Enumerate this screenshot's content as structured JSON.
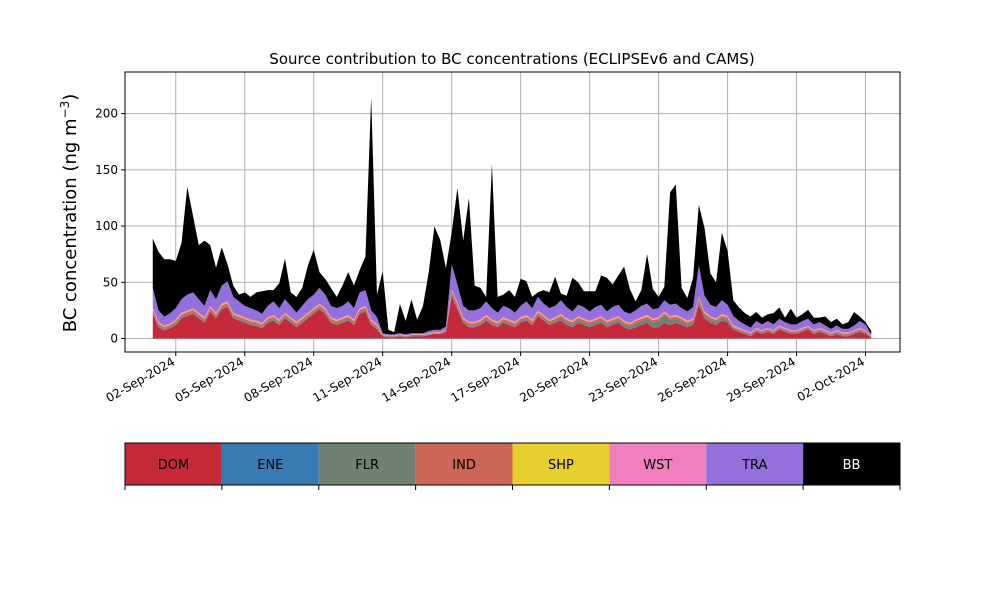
{
  "chart_data": {
    "type": "area",
    "stacked": true,
    "title": "Source contribution to BC concentrations (ECLIPSEv6 and CAMS)",
    "ylabel_main": "BC concentration (ng m",
    "ylabel_sup": "−3",
    "ylabel_close": ")",
    "xlabel": "",
    "ylim": [
      -12,
      237
    ],
    "yticks": [
      0,
      50,
      100,
      150,
      200
    ],
    "xlim": [
      "2024-08-30T19:00",
      "2024-10-03T12:00"
    ],
    "xticks": [
      {
        "date": "2024-09-02",
        "label": "02-Sep-2024"
      },
      {
        "date": "2024-09-05",
        "label": "05-Sep-2024"
      },
      {
        "date": "2024-09-08",
        "label": "08-Sep-2024"
      },
      {
        "date": "2024-09-11",
        "label": "11-Sep-2024"
      },
      {
        "date": "2024-09-14",
        "label": "14-Sep-2024"
      },
      {
        "date": "2024-09-17",
        "label": "17-Sep-2024"
      },
      {
        "date": "2024-09-20",
        "label": "20-Sep-2024"
      },
      {
        "date": "2024-09-23",
        "label": "23-Sep-2024"
      },
      {
        "date": "2024-09-26",
        "label": "26-Sep-2024"
      },
      {
        "date": "2024-09-29",
        "label": "29-Sep-2024"
      },
      {
        "date": "2024-10-02",
        "label": "02-Oct-2024"
      }
    ],
    "grid": true,
    "x": [
      "2024-09-01T00:00",
      "2024-09-01T06:00",
      "2024-09-01T12:00",
      "2024-09-01T18:00",
      "2024-09-02T00:00",
      "2024-09-02T06:00",
      "2024-09-02T12:00",
      "2024-09-02T18:00",
      "2024-09-03T00:00",
      "2024-09-03T06:00",
      "2024-09-03T12:00",
      "2024-09-03T18:00",
      "2024-09-04T00:00",
      "2024-09-04T06:00",
      "2024-09-04T12:00",
      "2024-09-04T18:00",
      "2024-09-05T00:00",
      "2024-09-05T06:00",
      "2024-09-05T12:00",
      "2024-09-05T18:00",
      "2024-09-06T00:00",
      "2024-09-06T06:00",
      "2024-09-06T12:00",
      "2024-09-06T18:00",
      "2024-09-07T00:00",
      "2024-09-07T06:00",
      "2024-09-07T12:00",
      "2024-09-07T18:00",
      "2024-09-08T00:00",
      "2024-09-08T06:00",
      "2024-09-08T12:00",
      "2024-09-08T18:00",
      "2024-09-09T00:00",
      "2024-09-09T06:00",
      "2024-09-09T12:00",
      "2024-09-09T18:00",
      "2024-09-10T00:00",
      "2024-09-10T06:00",
      "2024-09-10T12:00",
      "2024-09-10T18:00",
      "2024-09-11T00:00",
      "2024-09-11T06:00",
      "2024-09-11T12:00",
      "2024-09-11T18:00",
      "2024-09-12T00:00",
      "2024-09-12T06:00",
      "2024-09-12T12:00",
      "2024-09-12T18:00",
      "2024-09-13T00:00",
      "2024-09-13T06:00",
      "2024-09-13T12:00",
      "2024-09-13T18:00",
      "2024-09-14T00:00",
      "2024-09-14T06:00",
      "2024-09-14T12:00",
      "2024-09-14T18:00",
      "2024-09-15T00:00",
      "2024-09-15T06:00",
      "2024-09-15T12:00",
      "2024-09-15T18:00",
      "2024-09-16T00:00",
      "2024-09-16T06:00",
      "2024-09-16T12:00",
      "2024-09-16T18:00",
      "2024-09-17T00:00",
      "2024-09-17T06:00",
      "2024-09-17T12:00",
      "2024-09-17T18:00",
      "2024-09-18T00:00",
      "2024-09-18T06:00",
      "2024-09-18T12:00",
      "2024-09-18T18:00",
      "2024-09-19T00:00",
      "2024-09-19T06:00",
      "2024-09-19T12:00",
      "2024-09-19T18:00",
      "2024-09-20T00:00",
      "2024-09-20T06:00",
      "2024-09-20T12:00",
      "2024-09-20T18:00",
      "2024-09-21T00:00",
      "2024-09-21T06:00",
      "2024-09-21T12:00",
      "2024-09-21T18:00",
      "2024-09-22T00:00",
      "2024-09-22T06:00",
      "2024-09-22T12:00",
      "2024-09-22T18:00",
      "2024-09-23T00:00",
      "2024-09-23T06:00",
      "2024-09-23T12:00",
      "2024-09-23T18:00",
      "2024-09-24T00:00",
      "2024-09-24T06:00",
      "2024-09-24T12:00",
      "2024-09-24T18:00",
      "2024-09-25T00:00",
      "2024-09-25T06:00",
      "2024-09-25T12:00",
      "2024-09-25T18:00",
      "2024-09-26T00:00",
      "2024-09-26T06:00",
      "2024-09-26T12:00",
      "2024-09-26T18:00",
      "2024-09-27T00:00",
      "2024-09-27T06:00",
      "2024-09-27T12:00",
      "2024-09-27T18:00",
      "2024-09-28T00:00",
      "2024-09-28T06:00",
      "2024-09-28T12:00",
      "2024-09-28T18:00",
      "2024-09-29T00:00",
      "2024-09-29T06:00",
      "2024-09-29T12:00",
      "2024-09-29T18:00",
      "2024-09-30T00:00",
      "2024-09-30T06:00",
      "2024-09-30T12:00",
      "2024-09-30T18:00",
      "2024-10-01T00:00",
      "2024-10-01T06:00",
      "2024-10-01T12:00",
      "2024-10-01T18:00",
      "2024-10-02T00:00",
      "2024-10-02T06:00"
    ],
    "series": [
      {
        "name": "DOM",
        "color": "#c62a3a",
        "values": [
          22,
          10,
          7,
          9,
          12,
          18,
          20,
          22,
          18,
          14,
          24,
          18,
          26,
          28,
          18,
          16,
          14,
          12,
          11,
          9,
          14,
          16,
          12,
          18,
          14,
          10,
          14,
          18,
          22,
          26,
          22,
          14,
          12,
          14,
          16,
          12,
          22,
          24,
          12,
          8,
          2,
          1,
          1,
          2,
          1,
          2,
          2,
          2,
          3,
          4,
          4,
          6,
          38,
          26,
          14,
          10,
          10,
          12,
          16,
          12,
          10,
          14,
          12,
          10,
          14,
          16,
          12,
          20,
          16,
          12,
          14,
          16,
          12,
          10,
          14,
          12,
          10,
          12,
          14,
          10,
          12,
          14,
          10,
          8,
          10,
          12,
          14,
          10,
          10,
          14,
          12,
          14,
          12,
          10,
          12,
          30,
          18,
          14,
          12,
          16,
          14,
          8,
          6,
          4,
          2,
          6,
          4,
          6,
          4,
          8,
          6,
          4,
          4,
          6,
          8,
          4,
          6,
          4,
          2,
          4,
          2,
          2,
          4,
          6,
          4,
          1
        ]
      },
      {
        "name": "ENE",
        "color": "#3a7ab3",
        "values": [
          0.5,
          0.5,
          0.5,
          0.5,
          0.5,
          0.5,
          0.5,
          0.5,
          0.5,
          0.5,
          0.5,
          0.5,
          0.5,
          0.5,
          0.5,
          0.5,
          0.5,
          0.5,
          0.5,
          0.5,
          0.5,
          0.5,
          0.5,
          0.5,
          0.5,
          0.5,
          0.5,
          0.5,
          0.5,
          0.5,
          0.5,
          0.5,
          0.5,
          0.5,
          0.5,
          0.5,
          0.5,
          0.5,
          0.5,
          0.5,
          0.2,
          0.2,
          0.2,
          0.2,
          0.2,
          0.2,
          0.2,
          0.2,
          0.2,
          0.2,
          0.2,
          0.2,
          0.5,
          0.5,
          0.5,
          0.5,
          0.5,
          0.5,
          0.5,
          0.5,
          0.5,
          0.5,
          0.5,
          0.5,
          0.5,
          0.5,
          0.5,
          0.5,
          0.5,
          0.5,
          0.5,
          0.5,
          0.5,
          0.5,
          0.5,
          0.5,
          0.5,
          0.5,
          0.5,
          0.5,
          0.5,
          0.5,
          0.5,
          0.5,
          0.5,
          0.5,
          0.5,
          0.5,
          0.5,
          0.5,
          0.5,
          0.5,
          0.5,
          0.5,
          0.5,
          0.5,
          0.5,
          0.5,
          0.5,
          0.5,
          0.5,
          0.5,
          0.3,
          0.3,
          0.3,
          0.3,
          0.3,
          0.3,
          0.3,
          0.3,
          0.3,
          0.3,
          0.3,
          0.3,
          0.3,
          0.3,
          0.3,
          0.3,
          0.3,
          0.3,
          0.3,
          0.3,
          0.3,
          0.3,
          0.3,
          0.2
        ]
      },
      {
        "name": "FLR",
        "color": "#6f8272",
        "values": [
          1,
          1,
          1,
          1,
          1,
          1,
          1,
          1,
          1,
          1,
          1,
          1,
          1,
          1,
          1,
          1,
          1,
          1,
          1,
          1,
          1,
          1,
          1,
          1,
          1,
          1,
          1,
          1,
          1,
          1,
          1,
          1,
          1,
          1,
          1,
          1,
          1,
          1,
          1,
          1,
          0.5,
          0.5,
          0.5,
          0.5,
          0.5,
          0.5,
          0.5,
          0.5,
          0.5,
          0.5,
          0.5,
          0.5,
          1,
          1,
          1,
          1,
          1,
          1,
          1,
          1,
          1,
          1,
          1,
          1,
          1,
          1,
          1,
          1,
          1,
          1,
          1,
          2,
          2,
          2,
          2,
          2,
          2,
          2,
          2,
          2,
          2,
          2,
          2,
          2,
          3,
          3,
          3,
          4,
          5,
          6,
          4,
          3,
          3,
          2,
          2,
          2,
          2,
          2,
          2,
          2,
          2,
          1,
          1,
          1,
          1,
          1,
          1,
          1,
          1,
          1,
          1,
          1,
          1,
          1,
          1,
          1,
          1,
          1,
          1,
          1,
          1,
          1,
          1,
          1,
          1,
          0.5
        ]
      },
      {
        "name": "IND",
        "color": "#cc6656",
        "values": [
          2,
          2,
          1.5,
          1.5,
          2,
          2,
          2,
          2,
          2,
          2,
          2,
          2,
          2,
          2,
          2,
          2,
          2,
          2,
          2,
          2,
          2,
          2,
          2,
          2,
          2,
          2,
          2,
          2,
          2,
          2,
          2,
          2,
          2,
          2,
          2,
          2,
          2,
          2,
          2,
          2,
          0.5,
          0.5,
          0.5,
          0.5,
          0.5,
          0.5,
          0.5,
          0.5,
          0.5,
          0.5,
          0.5,
          0.5,
          3,
          3,
          2,
          2,
          2,
          2,
          2,
          2,
          2,
          2,
          2,
          2,
          2,
          2,
          2,
          2,
          2,
          2,
          2,
          2,
          2,
          2,
          2,
          2,
          2,
          2,
          2,
          2,
          2,
          2,
          2,
          2,
          2,
          2,
          2,
          2,
          2,
          2,
          2,
          2,
          2,
          2,
          2,
          3,
          2,
          2,
          2,
          2,
          2,
          1,
          1,
          1,
          1,
          1,
          1,
          1,
          1,
          1,
          1,
          1,
          1,
          1,
          1,
          1,
          1,
          1,
          1,
          1,
          1,
          1,
          1,
          1,
          1,
          0.5
        ]
      },
      {
        "name": "SHP",
        "color": "#e6cf2e",
        "values": [
          0.5,
          0.5,
          0.5,
          0.5,
          0.5,
          0.5,
          0.5,
          0.5,
          0.5,
          0.5,
          0.5,
          0.5,
          0.5,
          0.5,
          0.5,
          0.5,
          0.5,
          0.5,
          0.5,
          0.5,
          0.5,
          0.5,
          0.5,
          0.5,
          0.5,
          0.5,
          0.5,
          0.5,
          0.5,
          0.5,
          0.5,
          0.5,
          0.5,
          0.5,
          0.5,
          0.5,
          0.5,
          0.5,
          0.5,
          0.5,
          0.2,
          0.2,
          0.2,
          0.2,
          0.2,
          0.2,
          0.2,
          0.2,
          0.2,
          0.2,
          0.2,
          0.2,
          0.5,
          0.5,
          0.5,
          0.5,
          0.5,
          0.5,
          0.5,
          0.5,
          0.5,
          0.5,
          0.5,
          0.5,
          0.5,
          0.5,
          0.5,
          0.5,
          0.5,
          0.5,
          0.5,
          0.5,
          0.5,
          0.5,
          0.5,
          0.5,
          0.5,
          0.5,
          0.5,
          0.5,
          0.5,
          0.5,
          0.5,
          0.5,
          0.5,
          0.5,
          0.5,
          0.5,
          0.5,
          0.5,
          0.5,
          0.5,
          0.5,
          0.5,
          0.5,
          0.5,
          0.5,
          0.5,
          0.5,
          0.5,
          0.5,
          0.5,
          0.3,
          0.3,
          0.3,
          0.3,
          0.3,
          0.3,
          0.3,
          0.3,
          0.3,
          0.3,
          0.3,
          0.3,
          0.3,
          0.3,
          0.3,
          0.3,
          0.3,
          0.3,
          0.3,
          0.3,
          0.3,
          0.3,
          0.3,
          0.2
        ]
      },
      {
        "name": "WST",
        "color": "#f07fbe",
        "values": [
          1,
          1,
          1,
          1,
          1,
          1,
          1,
          1,
          1,
          1,
          1,
          1,
          1,
          1,
          1,
          1,
          1,
          1,
          1,
          1,
          1,
          1,
          1,
          1,
          1,
          1,
          1,
          1,
          1,
          1,
          1,
          1,
          1,
          1,
          1,
          1,
          1,
          1,
          1,
          1,
          0.3,
          0.3,
          0.3,
          0.3,
          0.3,
          0.3,
          0.3,
          0.3,
          0.3,
          0.3,
          0.3,
          0.3,
          1,
          1,
          1,
          1,
          1,
          1,
          1,
          1,
          1,
          1,
          1,
          1,
          1,
          1,
          1,
          1,
          1,
          1,
          1,
          1,
          1,
          1,
          1,
          1,
          1,
          1,
          1,
          1,
          1,
          1,
          1,
          1,
          1,
          1,
          1,
          1,
          1,
          1,
          1,
          1,
          1,
          1,
          1,
          1,
          1,
          1,
          1,
          1,
          1,
          1,
          1,
          1,
          1,
          1,
          1,
          1,
          1,
          1,
          1,
          1,
          1,
          1,
          1,
          1,
          1,
          1,
          1,
          1,
          1,
          1,
          1,
          1,
          1,
          0.3
        ]
      },
      {
        "name": "TRA",
        "color": "#9370db",
        "values": [
          18,
          10,
          8,
          9,
          10,
          12,
          14,
          14,
          12,
          10,
          14,
          12,
          16,
          18,
          14,
          12,
          10,
          10,
          9,
          8,
          10,
          12,
          10,
          12,
          10,
          8,
          10,
          12,
          12,
          14,
          12,
          10,
          10,
          10,
          12,
          10,
          14,
          14,
          8,
          6,
          1,
          1,
          1,
          1,
          1,
          1,
          1,
          1,
          2,
          2,
          2,
          3,
          22,
          16,
          10,
          10,
          10,
          10,
          12,
          10,
          8,
          10,
          10,
          8,
          10,
          12,
          10,
          12,
          10,
          10,
          10,
          12,
          10,
          8,
          10,
          10,
          8,
          10,
          10,
          8,
          10,
          10,
          8,
          8,
          8,
          10,
          10,
          8,
          8,
          10,
          10,
          10,
          8,
          8,
          10,
          28,
          14,
          10,
          10,
          12,
          10,
          8,
          6,
          5,
          4,
          6,
          5,
          6,
          5,
          6,
          5,
          5,
          5,
          6,
          6,
          5,
          5,
          4,
          3,
          4,
          3,
          3,
          4,
          6,
          5,
          1
        ]
      },
      {
        "name": "BB",
        "color": "#000000",
        "values": [
          44,
          52,
          51,
          48,
          42,
          50,
          96,
          68,
          48,
          58,
          40,
          28,
          34,
          15,
          10,
          6,
          12,
          10,
          16,
          20,
          14,
          10,
          22,
          36,
          12,
          14,
          16,
          30,
          40,
          14,
          14,
          16,
          10,
          18,
          26,
          20,
          20,
          30,
          190,
          20,
          55,
          4,
          2,
          26,
          12,
          30,
          12,
          24,
          52,
          92,
          80,
          52,
          28,
          86,
          58,
          100,
          22,
          18,
          4,
          128,
          14,
          10,
          16,
          14,
          24,
          18,
          10,
          4,
          12,
          14,
          26,
          6,
          10,
          30,
          20,
          14,
          18,
          14,
          26,
          30,
          20,
          26,
          40,
          22,
          8,
          14,
          44,
          18,
          10,
          12,
          100,
          106,
          18,
          12,
          26,
          54,
          60,
          28,
          22,
          60,
          48,
          14,
          12,
          10,
          10,
          8,
          6,
          6,
          10,
          10,
          4,
          14,
          6,
          6,
          8,
          6,
          4,
          8,
          6,
          6,
          4,
          6,
          12,
          4,
          2,
          3
        ]
      }
    ],
    "legend": {
      "placement": "bottom",
      "labels": [
        "DOM",
        "ENE",
        "FLR",
        "IND",
        "SHP",
        "WST",
        "TRA",
        "BB"
      ],
      "colors": [
        "#c62a3a",
        "#3a7ab3",
        "#6f8272",
        "#cc6656",
        "#e6cf2e",
        "#f07fbe",
        "#9370db",
        "#000000"
      ],
      "text_colors": [
        "#000000",
        "#000000",
        "#000000",
        "#000000",
        "#000000",
        "#000000",
        "#000000",
        "#ffffff"
      ]
    }
  }
}
